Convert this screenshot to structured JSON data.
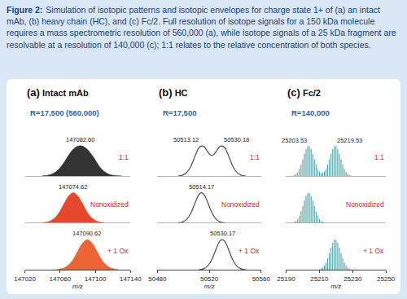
{
  "caption": {
    "title": "Figure 2:",
    "text": "Simulation of isotopic patterns and isotopic envelopes for charge state 1+ of (a) an intact mAb, (b) heavy chain (HC), and (c) Fc/2. Full resolution of isotope signals for a 150 kDa molecule requires a mass spectrometric resolution of 560,000 (a), while isotope signals of a 25 kDa fragment are resolvable at a resolution of 140,000 (c); 1:1 relates to the relative concentration of both species."
  },
  "chart_data": [
    {
      "type": "area",
      "label": "(a)",
      "title": "Intact mAb",
      "subtitle": "R=17,500 (560,000)",
      "x_label": "m/z",
      "xlim": [
        147020,
        147140
      ],
      "xticks": [
        147020,
        147060,
        147100,
        147140
      ],
      "ylim": [
        0,
        125
      ],
      "grid": false,
      "tick_labels": "x",
      "series": [
        {
          "name": "1:1",
          "color": "#333333",
          "x": [
            147040,
            147045,
            147050,
            147055,
            147060,
            147065,
            147070,
            147075,
            147080,
            147085,
            147090,
            147095,
            147100,
            147105,
            147110,
            147115,
            147120,
            147125,
            147130
          ],
          "values": [
            0.4,
            1.6,
            5.1,
            12.8,
            27,
            47,
            70,
            89,
            99,
            100,
            91,
            74,
            53,
            30,
            15,
            6.2,
            2,
            0.5,
            0.1
          ],
          "annotations": [
            {
              "x": 147082.6,
              "text": "147082.60"
            }
          ]
        },
        {
          "name": "Nonoxidized",
          "color": "#e5482b",
          "x": [
            147040,
            147045,
            147050,
            147055,
            147060,
            147065,
            147070,
            147075,
            147080,
            147085,
            147090,
            147095,
            147100,
            147105,
            147110
          ],
          "values": [
            0.6,
            2.4,
            7.6,
            19,
            39,
            66,
            90,
            100,
            90,
            66,
            39,
            19,
            7.6,
            2.4,
            0.6
          ],
          "annotations": [
            {
              "x": 147074.62,
              "text": "147074.62"
            }
          ]
        },
        {
          "name": "+ 1 Ox",
          "color": "#ec6436",
          "x": [
            147056,
            147061,
            147066,
            147071,
            147076,
            147081,
            147086,
            147091,
            147096,
            147101,
            147106,
            147111,
            147116,
            147121,
            147126
          ],
          "values": [
            0.6,
            2.4,
            7.6,
            19,
            39,
            66,
            90,
            100,
            90,
            66,
            39,
            19,
            7.6,
            2.4,
            0.6
          ],
          "annotations": [
            {
              "x": 147090.62,
              "text": "147090.62"
            }
          ]
        }
      ]
    },
    {
      "type": "line",
      "label": "(b)",
      "title": "HC",
      "subtitle": "R=17,500",
      "x_label": "m/z",
      "xlim": [
        50480,
        50560
      ],
      "xticks": [
        50480,
        50520,
        50560
      ],
      "ylim": [
        0,
        125
      ],
      "grid": false,
      "tick_labels": "x",
      "series": [
        {
          "name": "1:1",
          "color": "#4d4d4d",
          "x": [
            50496,
            50498,
            50500,
            50502,
            50504,
            50506,
            50508,
            50510,
            50512,
            50514,
            50516,
            50518,
            50520,
            50522,
            50524,
            50526,
            50528,
            50530,
            50532,
            50534,
            50536,
            50538,
            50540,
            50542,
            50544,
            50546,
            50548
          ],
          "values": [
            0.45,
            1.4,
            3.8,
            9.3,
            19,
            34,
            55,
            77,
            94,
            100,
            98,
            86,
            74,
            68,
            74,
            86,
            98,
            100,
            94,
            77,
            55,
            34,
            19,
            9.1,
            3.8,
            1.4,
            0.45
          ],
          "annotations": [
            {
              "x": 50513.12,
              "text": "50513.12"
            },
            {
              "x": 50530.18,
              "text": "50530.18"
            }
          ]
        },
        {
          "name": "Nonoxidized",
          "color": "#4d4d4d",
          "x": [
            50496,
            50498,
            50500,
            50502,
            50504,
            50506,
            50508,
            50510,
            50512,
            50514,
            50516,
            50518,
            50520,
            50522,
            50524,
            50526,
            50528,
            50530,
            50532
          ],
          "values": [
            0.45,
            1.4,
            3.8,
            9.1,
            19,
            34,
            55,
            77,
            94,
            100,
            94,
            77,
            55,
            34,
            19,
            9.1,
            3.8,
            1.4,
            0.45
          ],
          "annotations": [
            {
              "x": 50514.17,
              "text": "50514.17"
            }
          ]
        },
        {
          "name": "+ 1 Ox",
          "color": "#4d4d4d",
          "x": [
            50512,
            50514,
            50516,
            50518,
            50520,
            50522,
            50524,
            50526,
            50528,
            50530,
            50532,
            50534,
            50536,
            50538,
            50540,
            50542,
            50544,
            50546,
            50548
          ],
          "values": [
            0.45,
            1.4,
            3.8,
            9.1,
            19,
            34,
            55,
            77,
            94,
            100,
            94,
            77,
            55,
            34,
            19,
            9.1,
            3.8,
            1.4,
            0.45
          ],
          "annotations": [
            {
              "x": 50530.17,
              "text": "50530.17"
            }
          ]
        }
      ]
    },
    {
      "type": "bar",
      "label": "(c)",
      "title": "Fc/2",
      "subtitle": "R=140,000",
      "x_label": "m/z",
      "xlim": [
        25190,
        25250
      ],
      "xticks": [
        25190,
        25210,
        25230,
        25250
      ],
      "ylim": [
        0,
        125
      ],
      "grid": false,
      "tick_labels": "x",
      "series": [
        {
          "name": "1:1",
          "color": "#4a9a9c",
          "x": [
            25194,
            25195,
            25196,
            25197,
            25198,
            25199,
            25200,
            25201,
            25202,
            25203,
            25204,
            25205,
            25206,
            25207,
            25208,
            25209,
            25210,
            25211,
            25212,
            25213,
            25214,
            25215,
            25216,
            25217,
            25218,
            25219,
            25220,
            25221,
            25222,
            25223,
            25224,
            25225,
            25226,
            25227,
            25228,
            25229
          ],
          "values": [
            1.4,
            3.2,
            6.9,
            13,
            24,
            38,
            56,
            74,
            90,
            99,
            99,
            90,
            74,
            56,
            38,
            24,
            15,
            10,
            10,
            15,
            24,
            38,
            56,
            74,
            90,
            99,
            99,
            90,
            74,
            56,
            38,
            24,
            13,
            6.9,
            3.2,
            1.4
          ],
          "annotations": [
            {
              "x": 25203.53,
              "text": "25203.53"
            },
            {
              "x": 25219.53,
              "text": "25219.53"
            }
          ]
        },
        {
          "name": "Nonoxidized",
          "color": "#4a9a9c",
          "x": [
            25194,
            25195,
            25196,
            25197,
            25198,
            25199,
            25200,
            25201,
            25202,
            25203,
            25204,
            25205,
            25206,
            25207,
            25208,
            25209,
            25210,
            25211,
            25212,
            25213
          ],
          "values": [
            1.4,
            3.2,
            6.9,
            13,
            24,
            38,
            56,
            74,
            90,
            99,
            99,
            90,
            74,
            56,
            38,
            24,
            13,
            6.9,
            3.2,
            1.4
          ]
        },
        {
          "name": "+ 1 Ox",
          "color": "#4a9a9c",
          "x": [
            25210,
            25211,
            25212,
            25213,
            25214,
            25215,
            25216,
            25217,
            25218,
            25219,
            25220,
            25221,
            25222,
            25223,
            25224,
            25225,
            25226,
            25227,
            25228,
            25229
          ],
          "values": [
            1.4,
            3.2,
            6.9,
            13,
            24,
            38,
            56,
            74,
            90,
            99,
            99,
            90,
            74,
            56,
            38,
            24,
            13,
            6.9,
            3.2,
            1.4
          ]
        }
      ]
    }
  ]
}
